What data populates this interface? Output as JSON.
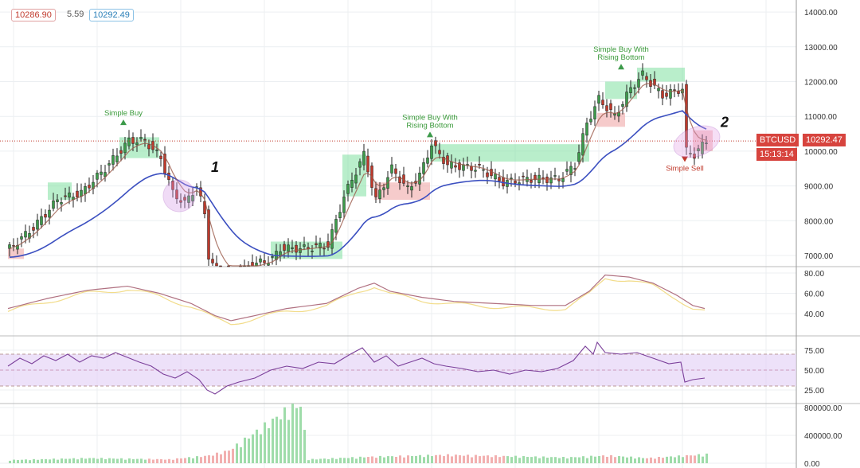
{
  "header": {
    "bid": "10286.90",
    "spread": "5.59",
    "ask": "10292.49"
  },
  "symbol": {
    "ticker": "BTCUSD",
    "price": "10292.47",
    "countdown": "15:13:14",
    "color": "#d7443e"
  },
  "colors": {
    "up": "#3c9a4a",
    "down": "#c0392b",
    "buy_zone": "#7fe0a0",
    "sell_zone": "#f0a8a8",
    "ma": "#3b4fc0",
    "fast": "#9b5a4a",
    "rsi_band": "#e6d4f7"
  },
  "chart_data": [
    {
      "type": "candlestick",
      "title": "",
      "ylim": [
        6800,
        14300
      ],
      "yticks": [
        "14000.00",
        "13000.00",
        "12000.00",
        "11000.00",
        "10000.00",
        "9000.00",
        "8000.00",
        "7000.00"
      ],
      "close_keypoints": [
        [
          0,
          7200
        ],
        [
          6,
          7800
        ],
        [
          12,
          8600
        ],
        [
          18,
          8800
        ],
        [
          24,
          9500
        ],
        [
          30,
          10300
        ],
        [
          34,
          10300
        ],
        [
          38,
          9800
        ],
        [
          41,
          8800
        ],
        [
          44,
          8500
        ],
        [
          47,
          9000
        ],
        [
          49,
          8200
        ],
        [
          50,
          7000
        ],
        [
          52,
          6500
        ],
        [
          56,
          6300
        ],
        [
          60,
          6700
        ],
        [
          66,
          6900
        ],
        [
          68,
          7200
        ],
        [
          74,
          7200
        ],
        [
          80,
          7300
        ],
        [
          84,
          8700
        ],
        [
          89,
          9900
        ],
        [
          92,
          8600
        ],
        [
          96,
          9500
        ],
        [
          100,
          8900
        ],
        [
          103,
          9300
        ],
        [
          106,
          10200
        ],
        [
          110,
          9600
        ],
        [
          118,
          9500
        ],
        [
          124,
          9100
        ],
        [
          130,
          9200
        ],
        [
          138,
          9200
        ],
        [
          142,
          9600
        ],
        [
          145,
          10800
        ],
        [
          148,
          11500
        ],
        [
          152,
          11000
        ],
        [
          156,
          11800
        ],
        [
          159,
          12200
        ],
        [
          164,
          11600
        ],
        [
          169,
          11800
        ],
        [
          170,
          10000
        ],
        [
          172,
          9900
        ],
        [
          175,
          10300
        ]
      ],
      "buy_zones": [
        [
          10,
          16,
          8600,
          9100
        ],
        [
          28,
          38,
          9800,
          10400
        ],
        [
          66,
          84,
          6900,
          7400
        ],
        [
          84,
          90,
          8700,
          9900
        ],
        [
          106,
          146,
          9700,
          10200
        ],
        [
          150,
          158,
          11500,
          12000
        ],
        [
          158,
          170,
          12000,
          12400
        ]
      ],
      "sell_zones": [
        [
          0,
          4,
          6900,
          7200
        ],
        [
          92,
          106,
          8600,
          9100
        ],
        [
          148,
          155,
          10700,
          11100
        ],
        [
          172,
          177,
          10000,
          10600
        ]
      ],
      "annotations": [
        {
          "text": "Simple Buy",
          "bar": 29,
          "price": 10750,
          "kind": "buy"
        },
        {
          "text": "Simple Buy With Rising Bottom",
          "bar": 106,
          "price": 10400,
          "kind": "buy"
        },
        {
          "text": "Simple Buy With Rising Bottom",
          "bar": 154,
          "price": 12350,
          "kind": "buy"
        },
        {
          "text": "Simple Sell",
          "bar": 170,
          "price": 9850,
          "kind": "sell"
        },
        {
          "text": "1",
          "bar": 51,
          "price": 9400,
          "kind": "label"
        },
        {
          "text": "2",
          "bar": 179,
          "price": 10700,
          "kind": "label"
        }
      ]
    },
    {
      "type": "line",
      "ylim": [
        30,
        85
      ],
      "yticks": [
        "80.00",
        "60.00",
        "40.00"
      ],
      "keypoints": [
        [
          0,
          45
        ],
        [
          10,
          55
        ],
        [
          20,
          63
        ],
        [
          30,
          67
        ],
        [
          38,
          60
        ],
        [
          46,
          50
        ],
        [
          52,
          38
        ],
        [
          56,
          33
        ],
        [
          62,
          38
        ],
        [
          70,
          45
        ],
        [
          80,
          50
        ],
        [
          88,
          65
        ],
        [
          92,
          70
        ],
        [
          96,
          62
        ],
        [
          104,
          56
        ],
        [
          112,
          52
        ],
        [
          122,
          50
        ],
        [
          132,
          48
        ],
        [
          140,
          48
        ],
        [
          146,
          62
        ],
        [
          150,
          78
        ],
        [
          156,
          76
        ],
        [
          162,
          70
        ],
        [
          168,
          58
        ],
        [
          172,
          48
        ],
        [
          175,
          45
        ]
      ]
    },
    {
      "type": "line",
      "ylim": [
        10,
        88
      ],
      "yticks": [
        "75.00",
        "50.00",
        "25.00"
      ],
      "band": [
        30,
        70
      ],
      "keypoints": [
        [
          0,
          55
        ],
        [
          3,
          65
        ],
        [
          6,
          58
        ],
        [
          9,
          68
        ],
        [
          12,
          62
        ],
        [
          15,
          70
        ],
        [
          18,
          60
        ],
        [
          21,
          68
        ],
        [
          24,
          65
        ],
        [
          27,
          72
        ],
        [
          30,
          66
        ],
        [
          33,
          60
        ],
        [
          36,
          55
        ],
        [
          39,
          45
        ],
        [
          42,
          40
        ],
        [
          45,
          48
        ],
        [
          48,
          38
        ],
        [
          50,
          25
        ],
        [
          52,
          20
        ],
        [
          55,
          30
        ],
        [
          58,
          35
        ],
        [
          62,
          40
        ],
        [
          66,
          50
        ],
        [
          70,
          55
        ],
        [
          74,
          52
        ],
        [
          78,
          60
        ],
        [
          82,
          58
        ],
        [
          86,
          70
        ],
        [
          89,
          78
        ],
        [
          92,
          60
        ],
        [
          95,
          68
        ],
        [
          98,
          55
        ],
        [
          101,
          60
        ],
        [
          104,
          65
        ],
        [
          107,
          58
        ],
        [
          110,
          55
        ],
        [
          114,
          52
        ],
        [
          118,
          48
        ],
        [
          122,
          50
        ],
        [
          126,
          45
        ],
        [
          130,
          50
        ],
        [
          134,
          48
        ],
        [
          138,
          52
        ],
        [
          142,
          62
        ],
        [
          145,
          80
        ],
        [
          147,
          70
        ],
        [
          148,
          85
        ],
        [
          150,
          72
        ],
        [
          154,
          70
        ],
        [
          158,
          72
        ],
        [
          162,
          65
        ],
        [
          166,
          58
        ],
        [
          169,
          60
        ],
        [
          170,
          35
        ],
        [
          172,
          38
        ],
        [
          175,
          40
        ]
      ]
    },
    {
      "type": "bar",
      "ylim": [
        0,
        950000
      ],
      "yticks": [
        "800000.00",
        "400000.00",
        "0.00"
      ],
      "keypoints": [
        [
          0,
          50000
        ],
        [
          20,
          80000
        ],
        [
          40,
          60000
        ],
        [
          50,
          120000
        ],
        [
          55,
          200000
        ],
        [
          62,
          500000
        ],
        [
          70,
          850000
        ],
        [
          73,
          920000
        ],
        [
          75,
          60000
        ],
        [
          90,
          100000
        ],
        [
          110,
          130000
        ],
        [
          125,
          110000
        ],
        [
          140,
          90000
        ],
        [
          150,
          120000
        ],
        [
          160,
          80000
        ],
        [
          175,
          140000
        ]
      ]
    }
  ]
}
